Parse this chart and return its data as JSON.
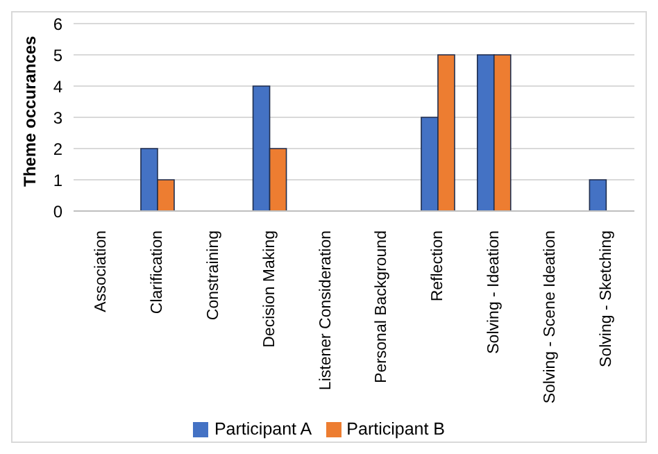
{
  "chart_data": {
    "type": "bar",
    "ylabel": "Theme occurances",
    "categories": [
      "Association",
      "Clarification",
      "Constraining",
      "Decision Making",
      "Listener Consideration",
      "Personal Background",
      "Reflection",
      "Solving - Ideation",
      "Solving - Scene Ideation",
      "Solving - Sketching"
    ],
    "series": [
      {
        "name": "Participant A",
        "color": "#4472c4",
        "values": [
          0,
          2,
          0,
          4,
          0,
          0,
          3,
          5,
          0,
          1
        ]
      },
      {
        "name": "Participant B",
        "color": "#ed7d31",
        "values": [
          0,
          1,
          0,
          2,
          0,
          0,
          5,
          5,
          0,
          0
        ]
      }
    ],
    "ylim": [
      0,
      6
    ],
    "yticks": [
      0,
      1,
      2,
      3,
      4,
      5,
      6
    ],
    "grid": "y",
    "legend": "bottom"
  }
}
